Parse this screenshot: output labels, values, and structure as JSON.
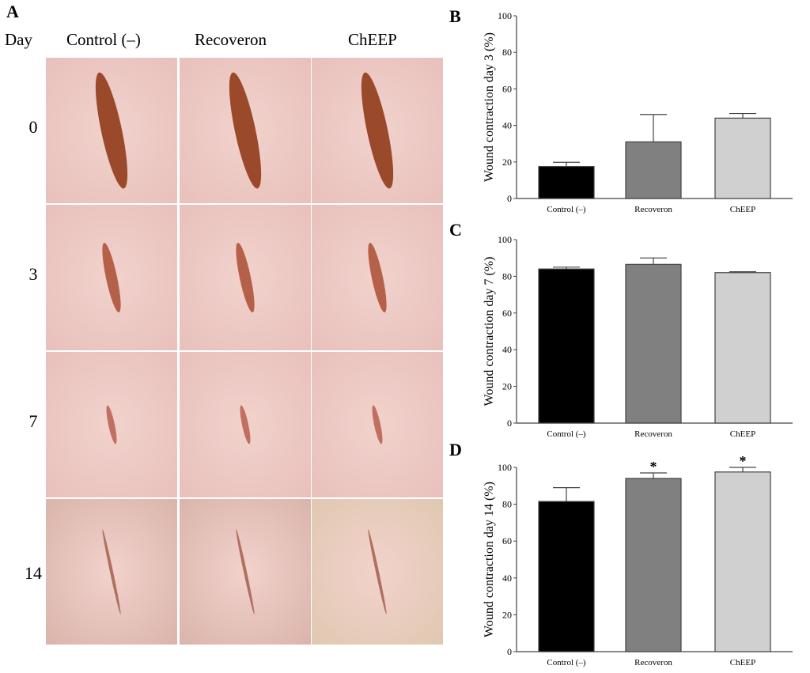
{
  "panel_a": {
    "label": "A",
    "day_header": "Day",
    "columns": [
      "Control (–)",
      "Recoveron",
      "ChEEP"
    ],
    "days": [
      "0",
      "3",
      "7",
      "14"
    ]
  },
  "chart_data": [
    {
      "panel": "B",
      "type": "bar",
      "categories": [
        "Control (–)",
        "Recoveron",
        "ChEEP"
      ],
      "values": [
        17.5,
        31,
        44
      ],
      "errors": [
        2.3,
        15,
        2.5
      ],
      "ylabel": "Wound contraction day 3 (%)",
      "ylim": [
        0,
        100
      ],
      "yticks": [
        0,
        20,
        40,
        60,
        80,
        100
      ],
      "colors": [
        "#000000",
        "#808080",
        "#d0d0d0"
      ],
      "annotations": [
        "",
        "",
        ""
      ]
    },
    {
      "panel": "C",
      "type": "bar",
      "categories": [
        "Control (–)",
        "Recoveron",
        "ChEEP"
      ],
      "values": [
        84,
        86.5,
        82
      ],
      "errors": [
        1,
        3.5,
        0.5
      ],
      "ylabel": "Wound contraction day 7 (%)",
      "ylim": [
        0,
        100
      ],
      "yticks": [
        0,
        20,
        40,
        60,
        80,
        100
      ],
      "colors": [
        "#000000",
        "#808080",
        "#d0d0d0"
      ],
      "annotations": [
        "",
        "",
        ""
      ]
    },
    {
      "panel": "D",
      "type": "bar",
      "categories": [
        "Control (–)",
        "Recoveron",
        "ChEEP"
      ],
      "values": [
        81.5,
        94,
        97.5
      ],
      "errors": [
        7.5,
        3,
        2.5
      ],
      "ylabel": "Wound contraction day 14 (%)",
      "ylim": [
        0,
        100
      ],
      "yticks": [
        0,
        20,
        40,
        60,
        80,
        100
      ],
      "colors": [
        "#000000",
        "#808080",
        "#d0d0d0"
      ],
      "annotations": [
        "",
        "*",
        "*"
      ]
    }
  ]
}
